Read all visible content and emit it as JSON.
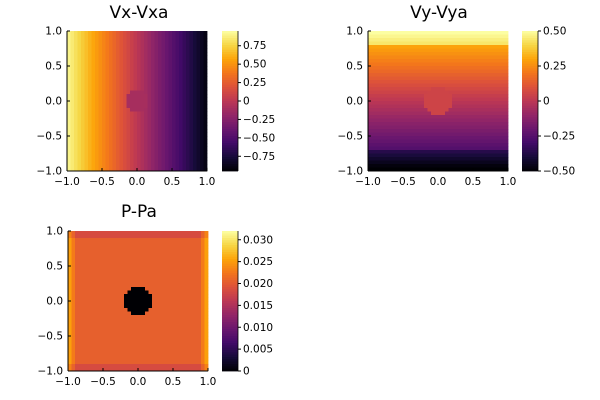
{
  "chart_data": [
    {
      "type": "heatmap",
      "title": "Vx-Vxa",
      "field": "vx",
      "xlim": [
        -1.0,
        1.0
      ],
      "ylim": [
        -1.0,
        1.0
      ],
      "x_ticks": [
        "-1.0",
        "-0.5",
        "0.0",
        "0.5",
        "1.0"
      ],
      "y_ticks": [
        "1.0",
        "0.5",
        "0.0",
        "-0.5",
        "-1.0"
      ],
      "colorbar": {
        "range": [
          -0.95,
          0.95
        ],
        "ticks": [
          0.75,
          0.5,
          0.25,
          0.0,
          -0.25,
          -0.5,
          -0.75
        ],
        "tick_labels": [
          "0.75",
          "0.50",
          "0.25",
          "0",
          "−0.25",
          "−0.50",
          "−0.75"
        ],
        "colormap": "inferno"
      }
    },
    {
      "type": "heatmap",
      "title": "Vy-Vya",
      "field": "vy",
      "xlim": [
        -1.0,
        1.0
      ],
      "ylim": [
        -1.0,
        1.0
      ],
      "x_ticks": [
        "-1.0",
        "-0.5",
        "0.0",
        "0.5",
        "1.0"
      ],
      "y_ticks": [
        "1.0",
        "0.5",
        "0.0",
        "-0.5",
        "-1.0"
      ],
      "colorbar": {
        "range": [
          -0.5,
          0.5
        ],
        "ticks": [
          0.5,
          0.25,
          0.0,
          -0.25,
          -0.5
        ],
        "tick_labels": [
          "0.50",
          "0.25",
          "0",
          "−0.25",
          "−0.50"
        ],
        "colormap": "inferno"
      }
    },
    {
      "type": "heatmap",
      "title": "P-Pa",
      "field": "p",
      "xlim": [
        -1.0,
        1.0
      ],
      "ylim": [
        -1.0,
        1.0
      ],
      "x_ticks": [
        "-1.0",
        "-0.5",
        "0.0",
        "0.5",
        "1.0"
      ],
      "y_ticks": [
        "1.0",
        "0.5",
        "0.0",
        "-0.5",
        "-1.0"
      ],
      "colorbar": {
        "range": [
          0.0,
          0.032
        ],
        "ticks": [
          0.03,
          0.025,
          0.02,
          0.015,
          0.01,
          0.005,
          0.0
        ],
        "tick_labels": [
          "0.030",
          "0.025",
          "0.020",
          "0.015",
          "0.010",
          "0.005",
          "0"
        ],
        "colormap": "inferno"
      }
    }
  ]
}
